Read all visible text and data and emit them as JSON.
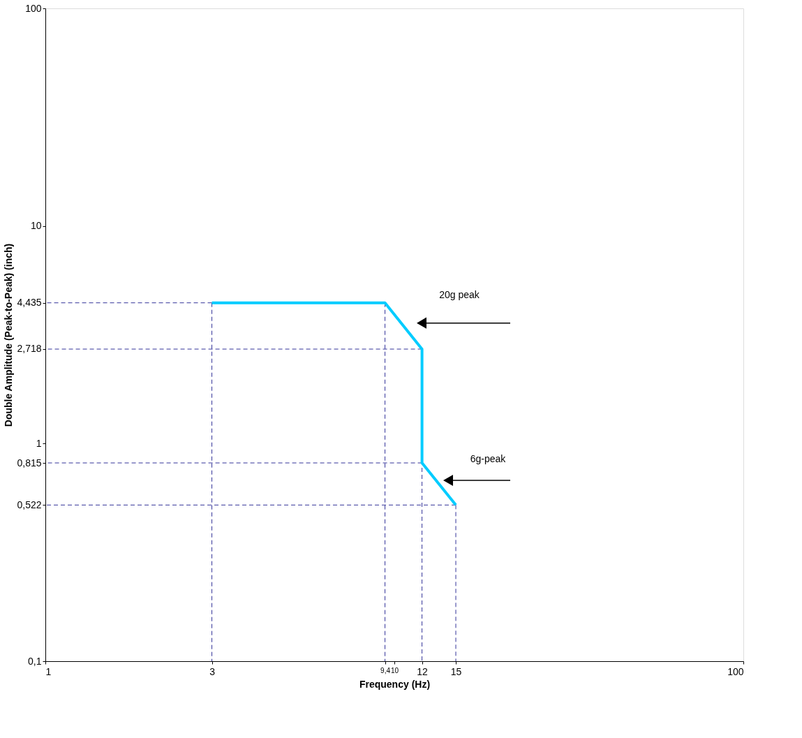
{
  "chart_data": {
    "type": "line",
    "xlabel": "Frequency (Hz)",
    "ylabel": "Double Amplitude (Peak-to-Peak) (inch)",
    "log": "xy",
    "grid": false,
    "marker": "none",
    "xlim": [
      1,
      100
    ],
    "xticks": [
      1,
      3,
      {
        "value": 9.4,
        "label": "9,4"
      },
      10,
      12,
      15,
      100
    ],
    "ylim": [
      0.1,
      100
    ],
    "yticks": [
      {
        "value": 0.1,
        "label": "0,1"
      },
      {
        "value": 0.522,
        "label": "0,522"
      },
      {
        "value": 0.815,
        "label": "0,815"
      },
      1,
      {
        "value": 2.718,
        "label": "2,718"
      },
      {
        "value": 4.435,
        "label": "4,435"
      },
      10,
      100
    ],
    "series": [
      {
        "line_style": "dashed",
        "color": "#333399",
        "x": [
          3,
          1
        ],
        "values": [
          4.435,
          4.435
        ]
      },
      {
        "line_style": "dashed",
        "color": "#333399",
        "x": [
          12,
          1
        ],
        "values": [
          2.718,
          2.718
        ]
      },
      {
        "line_style": "dashed",
        "color": "#333399",
        "x": [
          12,
          1
        ],
        "values": [
          0.815,
          0.815
        ]
      },
      {
        "line_style": "dashed",
        "color": "#333399",
        "x": [
          15,
          1
        ],
        "values": [
          0.522,
          0.522
        ]
      },
      {
        "line_style": "dashed",
        "color": "#333399",
        "x": [
          3,
          3
        ],
        "values": [
          4.435,
          0.1
        ]
      },
      {
        "line_style": "dashed",
        "color": "#333399",
        "x": [
          9.4,
          9.4
        ],
        "values": [
          4.435,
          0.1
        ]
      },
      {
        "line_style": "dashed",
        "color": "#333399",
        "x": [
          12,
          12
        ],
        "values": [
          2.718,
          0.1
        ]
      },
      {
        "line_style": "dashed",
        "color": "#333399",
        "x": [
          15,
          15
        ],
        "values": [
          0.522,
          0.1
        ]
      },
      {
        "line_style": "solid",
        "color": "#00ccff",
        "x": [
          3,
          9.4,
          12,
          12,
          15
        ],
        "values": [
          4.435,
          4.435,
          2.718,
          0.815,
          0.522
        ]
      }
    ],
    "annotations": [
      "20g peak",
      "6g-peak"
    ]
  }
}
